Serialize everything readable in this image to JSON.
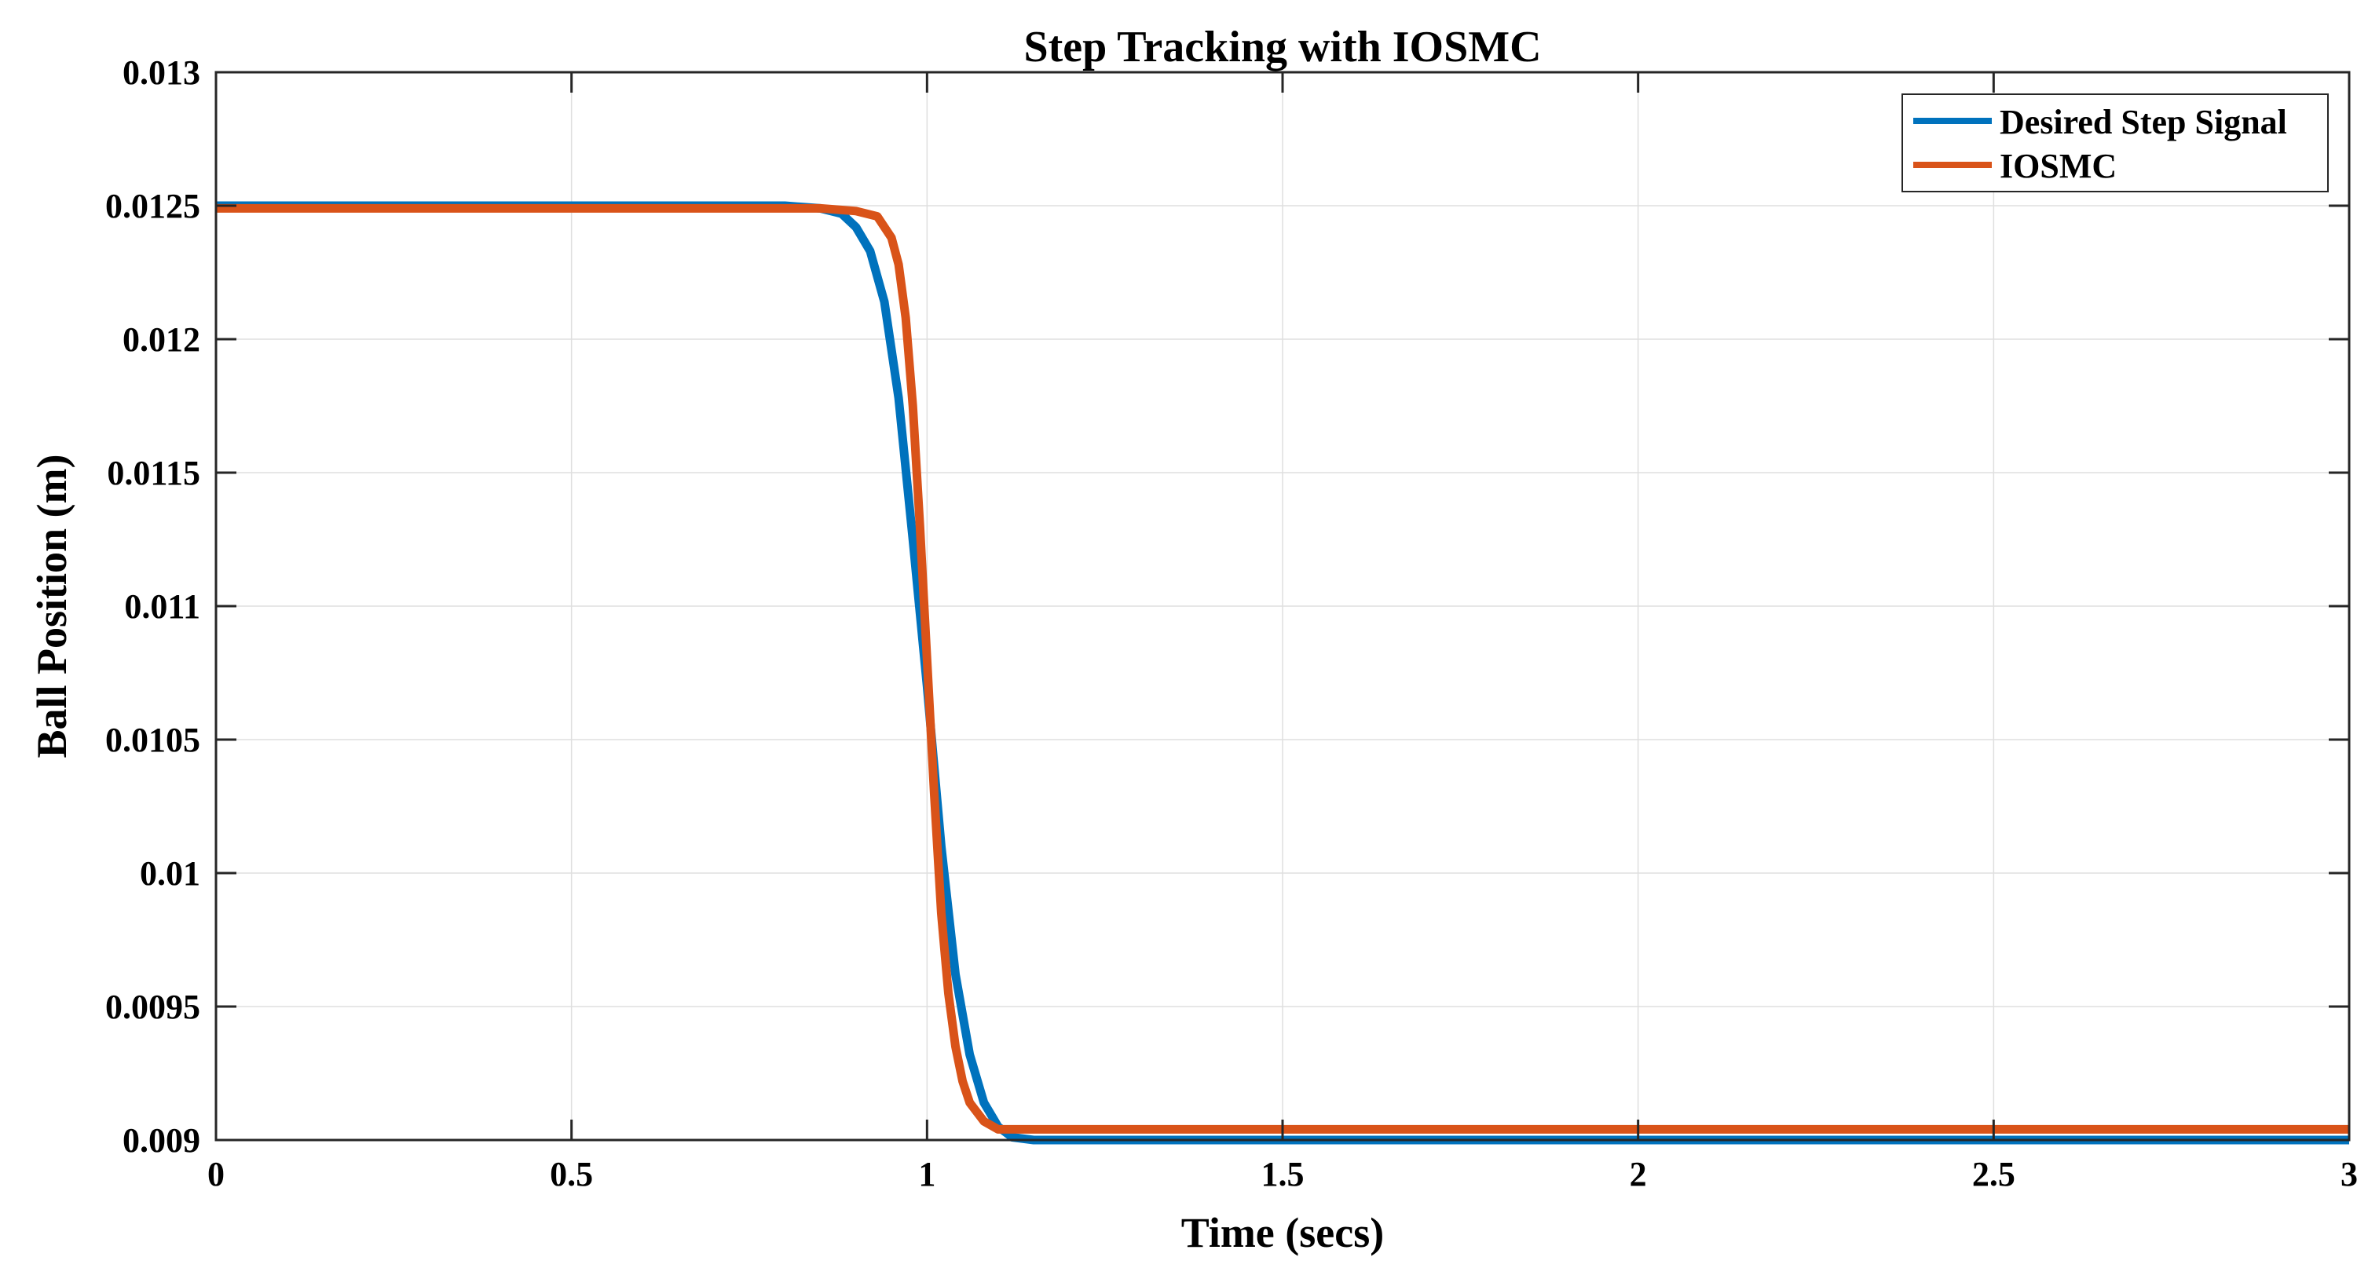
{
  "chart_data": {
    "type": "line",
    "title": "Step Tracking with IOSMC",
    "xlabel": "Time (secs)",
    "ylabel": "Ball Position (m)",
    "xlim": [
      0,
      3
    ],
    "ylim": [
      0.009,
      0.013
    ],
    "xticks": [
      0,
      0.5,
      1,
      1.5,
      2,
      2.5,
      3
    ],
    "xtick_labels": [
      "0",
      "0.5",
      "1",
      "1.5",
      "2",
      "2.5",
      "3"
    ],
    "yticks": [
      0.009,
      0.0095,
      0.01,
      0.0105,
      0.011,
      0.0115,
      0.012,
      0.0125,
      0.013
    ],
    "ytick_labels": [
      "0.009",
      "0.0095",
      "0.01",
      "0.0105",
      "0.011",
      "0.0115",
      "0.012",
      "0.0125",
      "0.013"
    ],
    "grid": true,
    "legend_position": "top-right",
    "series": [
      {
        "name": "Desired Step Signal",
        "color": "#0072BD",
        "x": [
          0,
          0.8,
          0.85,
          0.88,
          0.9,
          0.92,
          0.94,
          0.96,
          0.98,
          1.0,
          1.02,
          1.04,
          1.06,
          1.08,
          1.1,
          1.12,
          1.15,
          1.2,
          1.5,
          2.0,
          2.5,
          3.0
        ],
        "y": [
          0.0125,
          0.0125,
          0.01249,
          0.01247,
          0.01242,
          0.01233,
          0.01214,
          0.01178,
          0.01125,
          0.0107,
          0.0101,
          0.00962,
          0.00932,
          0.00914,
          0.00905,
          0.00901,
          0.009,
          0.009,
          0.009,
          0.009,
          0.009,
          0.009
        ]
      },
      {
        "name": "IOSMC",
        "color": "#D95319",
        "x": [
          0,
          0.85,
          0.9,
          0.93,
          0.95,
          0.96,
          0.97,
          0.98,
          0.99,
          1.0,
          1.01,
          1.02,
          1.03,
          1.04,
          1.05,
          1.06,
          1.08,
          1.1,
          1.15,
          1.5,
          2.0,
          2.5,
          3.0
        ],
        "y": [
          0.01249,
          0.01249,
          0.01248,
          0.01246,
          0.01238,
          0.01228,
          0.01208,
          0.01175,
          0.0113,
          0.0108,
          0.0103,
          0.00985,
          0.00955,
          0.00935,
          0.00922,
          0.00914,
          0.00907,
          0.00904,
          0.00904,
          0.00904,
          0.00904,
          0.00904,
          0.00904
        ]
      }
    ]
  }
}
